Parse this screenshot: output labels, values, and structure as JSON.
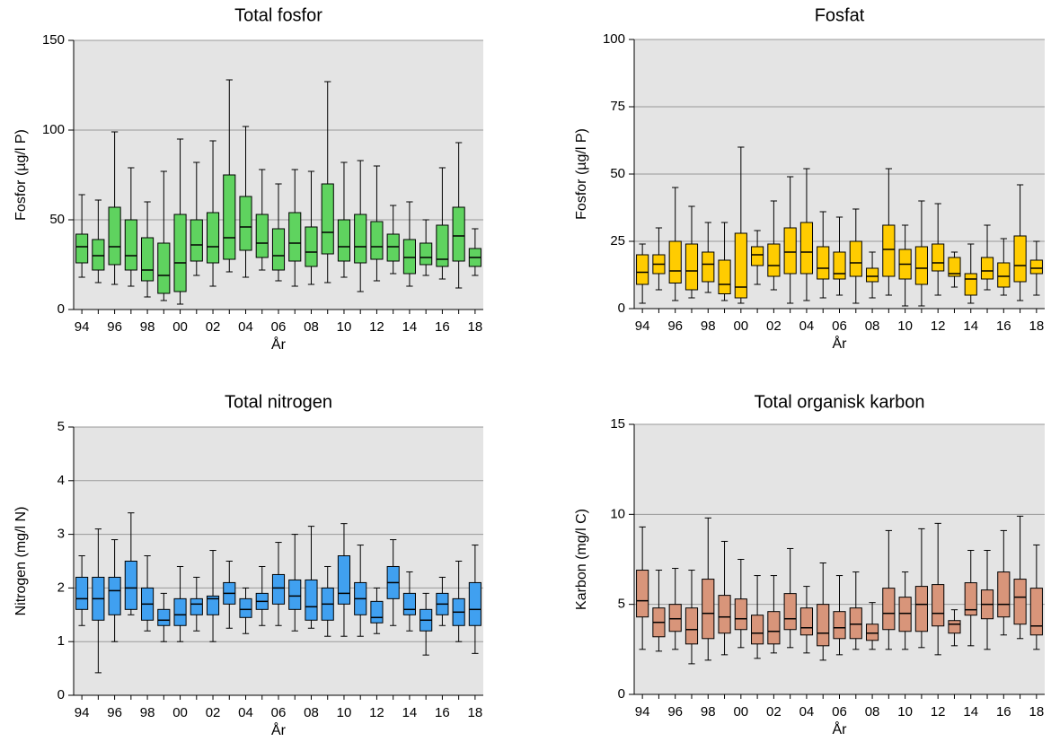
{
  "chart_data": [
    {
      "type": "box",
      "title": "Total fosfor",
      "x_label": "År",
      "y_label": "Fosfor (µg/l P)",
      "color": "#5fd35f",
      "categories": [
        "94",
        null,
        "96",
        null,
        "98",
        null,
        "00",
        null,
        "02",
        null,
        "04",
        null,
        "06",
        null,
        "08",
        null,
        "10",
        null,
        "12",
        null,
        "14",
        null,
        "16",
        null,
        "18"
      ],
      "max": [
        64,
        61,
        99,
        79,
        60,
        77,
        95,
        82,
        94,
        128,
        102,
        78,
        70,
        78,
        77,
        127,
        82,
        83,
        80,
        58,
        60,
        50,
        79,
        93,
        45
      ],
      "q3": [
        42,
        39,
        57,
        50,
        40,
        37,
        53,
        50,
        54,
        75,
        63,
        53,
        45,
        54,
        46,
        70,
        50,
        53,
        49,
        42,
        39,
        37,
        47,
        57,
        34
      ],
      "median": [
        35,
        30,
        35,
        30,
        22,
        19,
        26,
        36,
        35,
        40,
        46,
        37,
        30,
        37,
        32,
        43,
        35,
        35,
        35,
        35,
        29,
        29,
        28,
        41,
        29
      ],
      "q1": [
        26,
        22,
        25,
        22,
        16,
        9,
        10,
        27,
        26,
        28,
        33,
        29,
        22,
        27,
        24,
        31,
        27,
        26,
        28,
        27,
        20,
        25,
        24,
        27,
        24
      ],
      "min": [
        18,
        15,
        14,
        13,
        7,
        5,
        3,
        19,
        13,
        21,
        18,
        22,
        16,
        13,
        14,
        15,
        18,
        10,
        16,
        20,
        13,
        19,
        17,
        12,
        19
      ],
      "ylim": [
        0,
        150
      ],
      "yticks": [
        0,
        50,
        100,
        150
      ],
      "grid": true
    },
    {
      "type": "box",
      "title": "Fosfat",
      "x_label": "År",
      "y_label": "Fosfor (µg/l P)",
      "color": "#ffcc00",
      "categories": [
        "94",
        null,
        "96",
        null,
        "98",
        null,
        "00",
        null,
        "02",
        null,
        "04",
        null,
        "06",
        null,
        "08",
        null,
        "10",
        null,
        "12",
        null,
        "14",
        null,
        "16",
        null,
        "18"
      ],
      "max": [
        24,
        30,
        45,
        38,
        32,
        32,
        60,
        29,
        40,
        49,
        52,
        36,
        34,
        37,
        21,
        52,
        31,
        40,
        39,
        21,
        24,
        31,
        26,
        46,
        25
      ],
      "q3": [
        20,
        20,
        25,
        24,
        21,
        18,
        28,
        23,
        24,
        30,
        32,
        23,
        21,
        25,
        15,
        31,
        22,
        23,
        24,
        19,
        13,
        19,
        17,
        27,
        18
      ],
      "median": [
        13.5,
        16.5,
        14,
        14,
        16.5,
        9,
        8,
        20,
        16,
        21,
        21,
        15,
        13,
        17,
        12,
        22,
        16.5,
        15,
        17,
        13,
        11,
        14,
        12,
        16,
        15
      ],
      "q1": [
        9,
        13,
        9.5,
        7,
        10,
        5.5,
        4,
        16,
        12,
        13,
        13,
        11,
        11,
        12,
        10,
        12,
        11,
        9,
        14,
        12,
        5,
        11,
        8,
        10,
        13
      ],
      "min": [
        2,
        7,
        3,
        4,
        6,
        3,
        2,
        9,
        7,
        2,
        3,
        4,
        5,
        2,
        4,
        5,
        1,
        1,
        5,
        8,
        2,
        7,
        5,
        3,
        5
      ],
      "ylim": [
        0,
        100
      ],
      "yticks": [
        0,
        25,
        50,
        75,
        100
      ],
      "grid": true
    },
    {
      "type": "box",
      "title": "Total nitrogen",
      "x_label": "År",
      "y_label": "Nitrogen (mg/l N)",
      "color": "#40a0f0",
      "categories": [
        "94",
        null,
        "96",
        null,
        "98",
        null,
        "00",
        null,
        "02",
        null,
        "04",
        null,
        "06",
        null,
        "08",
        null,
        "10",
        null,
        "12",
        null,
        "14",
        null,
        "16",
        null,
        "18"
      ],
      "max": [
        2.6,
        3.1,
        2.9,
        3.4,
        2.6,
        1.9,
        2.4,
        2.2,
        2.7,
        2.5,
        2.0,
        2.4,
        2.85,
        3.0,
        3.15,
        2.4,
        3.2,
        2.8,
        2.0,
        2.9,
        2.3,
        1.9,
        2.2,
        2.5,
        2.8
      ],
      "q3": [
        2.2,
        2.2,
        2.2,
        2.5,
        2.0,
        1.6,
        1.8,
        1.8,
        1.85,
        2.1,
        1.8,
        1.9,
        2.25,
        2.15,
        2.15,
        2.0,
        2.6,
        2.1,
        1.75,
        2.4,
        1.9,
        1.6,
        1.9,
        1.8,
        2.1
      ],
      "median": [
        1.8,
        1.8,
        1.95,
        2.0,
        1.7,
        1.4,
        1.5,
        1.7,
        1.8,
        1.9,
        1.6,
        1.75,
        2.0,
        1.85,
        1.65,
        1.7,
        1.9,
        1.8,
        1.45,
        2.1,
        1.6,
        1.4,
        1.7,
        1.55,
        1.6
      ],
      "q1": [
        1.6,
        1.4,
        1.5,
        1.6,
        1.4,
        1.3,
        1.3,
        1.5,
        1.5,
        1.7,
        1.45,
        1.6,
        1.7,
        1.6,
        1.4,
        1.4,
        1.7,
        1.5,
        1.35,
        1.8,
        1.5,
        1.2,
        1.5,
        1.3,
        1.3
      ],
      "min": [
        1.3,
        0.42,
        1.0,
        1.5,
        1.2,
        1.0,
        1.0,
        1.2,
        1.0,
        1.25,
        1.15,
        1.3,
        1.3,
        1.2,
        1.25,
        1.1,
        1.1,
        1.1,
        1.15,
        1.3,
        1.2,
        0.75,
        1.3,
        1.0,
        0.78
      ],
      "ylim": [
        0,
        5
      ],
      "yticks": [
        0,
        1,
        2,
        3,
        4,
        5
      ],
      "grid": true
    },
    {
      "type": "box",
      "title": "Total organisk karbon",
      "x_label": "År",
      "y_label": "Karbon (mg/l C)",
      "color": "#d8957a",
      "categories": [
        "94",
        null,
        "96",
        null,
        "98",
        null,
        "00",
        null,
        "02",
        null,
        "04",
        null,
        "06",
        null,
        "08",
        null,
        "10",
        null,
        "12",
        null,
        "14",
        null,
        "16",
        null,
        "18"
      ],
      "max": [
        9.3,
        6.9,
        7.0,
        6.9,
        9.8,
        8.5,
        7.5,
        6.6,
        6.6,
        8.1,
        6.0,
        7.3,
        6.6,
        6.8,
        5.1,
        9.1,
        6.8,
        9.2,
        9.5,
        4.7,
        8.0,
        8.0,
        9.1,
        9.9,
        8.3
      ],
      "q3": [
        6.9,
        4.8,
        5.0,
        4.8,
        6.4,
        5.5,
        5.3,
        4.4,
        4.6,
        5.6,
        4.8,
        5.0,
        4.6,
        4.8,
        3.9,
        5.9,
        5.4,
        6.0,
        6.1,
        4.1,
        6.2,
        5.8,
        6.8,
        6.4,
        5.9
      ],
      "median": [
        5.2,
        4.0,
        4.2,
        3.6,
        4.5,
        4.3,
        4.2,
        3.4,
        3.5,
        4.2,
        3.7,
        3.4,
        3.7,
        3.9,
        3.4,
        4.5,
        4.5,
        5.0,
        4.5,
        3.9,
        4.7,
        5.0,
        5.0,
        5.4,
        3.8
      ],
      "q1": [
        4.3,
        3.2,
        3.5,
        2.8,
        3.1,
        3.4,
        3.6,
        2.8,
        2.8,
        3.6,
        3.3,
        2.7,
        3.1,
        3.1,
        3.0,
        3.6,
        3.5,
        3.5,
        3.8,
        3.4,
        4.4,
        4.2,
        4.3,
        3.9,
        3.3
      ],
      "min": [
        2.5,
        2.4,
        2.5,
        1.7,
        1.9,
        2.2,
        2.6,
        2.0,
        2.3,
        2.6,
        2.3,
        1.9,
        2.2,
        2.5,
        2.5,
        2.5,
        2.5,
        2.6,
        2.2,
        2.7,
        2.7,
        2.5,
        3.3,
        3.1,
        2.5
      ],
      "ylim": [
        0,
        15
      ],
      "yticks": [
        0,
        5,
        10,
        15
      ],
      "grid": true
    }
  ]
}
